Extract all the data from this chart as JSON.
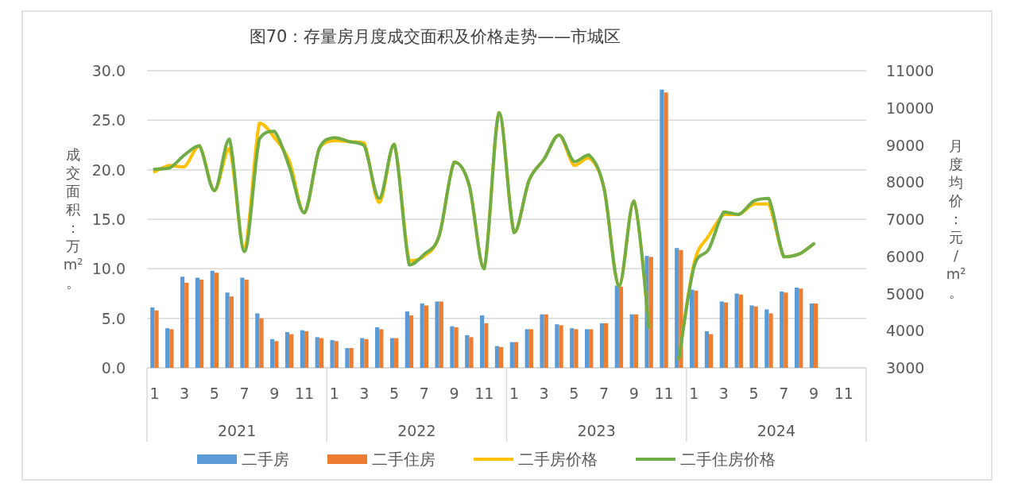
{
  "chart_data": {
    "type": "bar",
    "title": "图70：存量房月度成交面积及价格走势——市城区",
    "ylabel": "成交面积：万m²。",
    "y2label": "月度均价：元/m²。",
    "categories": [
      "1",
      null,
      "3",
      null,
      "5",
      null,
      "7",
      null,
      "9",
      null,
      "11",
      null,
      "1",
      null,
      "3",
      null,
      "5",
      null,
      "7",
      null,
      "9",
      null,
      "11",
      null,
      "1",
      null,
      "3",
      null,
      "5",
      null,
      "7",
      null,
      "9",
      null,
      "11",
      null,
      "1",
      null,
      "3",
      null,
      "5",
      null,
      "7",
      null,
      "9",
      null,
      "11",
      null
    ],
    "annotations": [
      "2021",
      "2022",
      "2023",
      "2024"
    ],
    "series": [
      {
        "name": "二手房",
        "color": "#5b9bd5",
        "values": [
          6.1,
          4.0,
          9.2,
          9.1,
          9.8,
          7.6,
          9.1,
          5.5,
          2.9,
          3.6,
          3.8,
          3.1,
          2.8,
          2.0,
          3.0,
          4.1,
          3.0,
          5.7,
          6.5,
          6.7,
          4.2,
          3.3,
          5.3,
          2.2,
          2.6,
          3.9,
          5.4,
          4.4,
          4.0,
          3.9,
          4.5,
          8.3,
          5.4,
          11.3,
          28.1,
          12.1,
          7.9,
          3.7,
          6.7,
          7.5,
          6.3,
          5.9,
          7.7,
          8.1,
          6.5,
          null,
          null,
          null
        ]
      },
      {
        "name": "二手住房",
        "color": "#ed7d31",
        "values": [
          5.8,
          3.9,
          8.6,
          8.9,
          9.6,
          7.2,
          8.9,
          5.0,
          2.7,
          3.4,
          3.7,
          3.0,
          2.7,
          2.0,
          2.9,
          3.9,
          3.0,
          5.3,
          6.3,
          6.7,
          4.1,
          3.1,
          4.5,
          2.1,
          2.6,
          3.9,
          5.4,
          4.3,
          3.9,
          3.9,
          4.5,
          8.2,
          5.4,
          11.2,
          27.8,
          11.9,
          7.8,
          3.4,
          6.6,
          7.4,
          6.2,
          5.5,
          7.6,
          8.0,
          6.5,
          null,
          null,
          null
        ]
      },
      {
        "name": "二手房价格",
        "type": "line",
        "axis": "y2",
        "color": "#ffc000",
        "values": [
          8280,
          8450,
          8410,
          8980,
          7770,
          8910,
          6190,
          9590,
          9200,
          8560,
          7170,
          8910,
          9120,
          9090,
          9050,
          7450,
          9020,
          5880,
          6010,
          6560,
          8540,
          7920,
          5670,
          9870,
          6640,
          8050,
          8620,
          9270,
          8450,
          8660,
          7840,
          5200,
          7490,
          4100,
          null,
          3250,
          5800,
          6560,
          7130,
          7130,
          7410,
          7410,
          5990,
          6060,
          6340,
          null,
          null,
          null
        ]
      },
      {
        "name": "二手住房价格",
        "type": "line",
        "axis": "y2",
        "color": "#70ad47",
        "values": [
          8350,
          8380,
          8730,
          8980,
          7770,
          9160,
          6130,
          9160,
          9370,
          8410,
          7170,
          8910,
          9200,
          9090,
          8980,
          7560,
          9020,
          5770,
          6060,
          6560,
          8540,
          7920,
          5670,
          9870,
          6640,
          8050,
          8620,
          9270,
          8550,
          8730,
          7840,
          5200,
          7490,
          4100,
          null,
          3250,
          5700,
          6200,
          7200,
          7130,
          7490,
          7560,
          5990,
          6060,
          6340,
          null,
          null,
          null
        ]
      }
    ],
    "ylim": [
      0,
      30
    ],
    "yticks": [
      {
        "value": 0,
        "label": "0.0"
      },
      {
        "value": 5,
        "label": "5.0"
      },
      {
        "value": 10,
        "label": "10.0"
      },
      {
        "value": 15,
        "label": "15.0"
      },
      {
        "value": 20,
        "label": "20.0"
      },
      {
        "value": 25,
        "label": "25.0"
      },
      {
        "value": 30,
        "label": "30.0"
      }
    ],
    "y2lim": [
      3000,
      11000
    ],
    "y2ticks": [
      3000,
      4000,
      5000,
      6000,
      7000,
      8000,
      9000,
      10000,
      11000
    ],
    "grid": "y",
    "legend": "bottom"
  }
}
